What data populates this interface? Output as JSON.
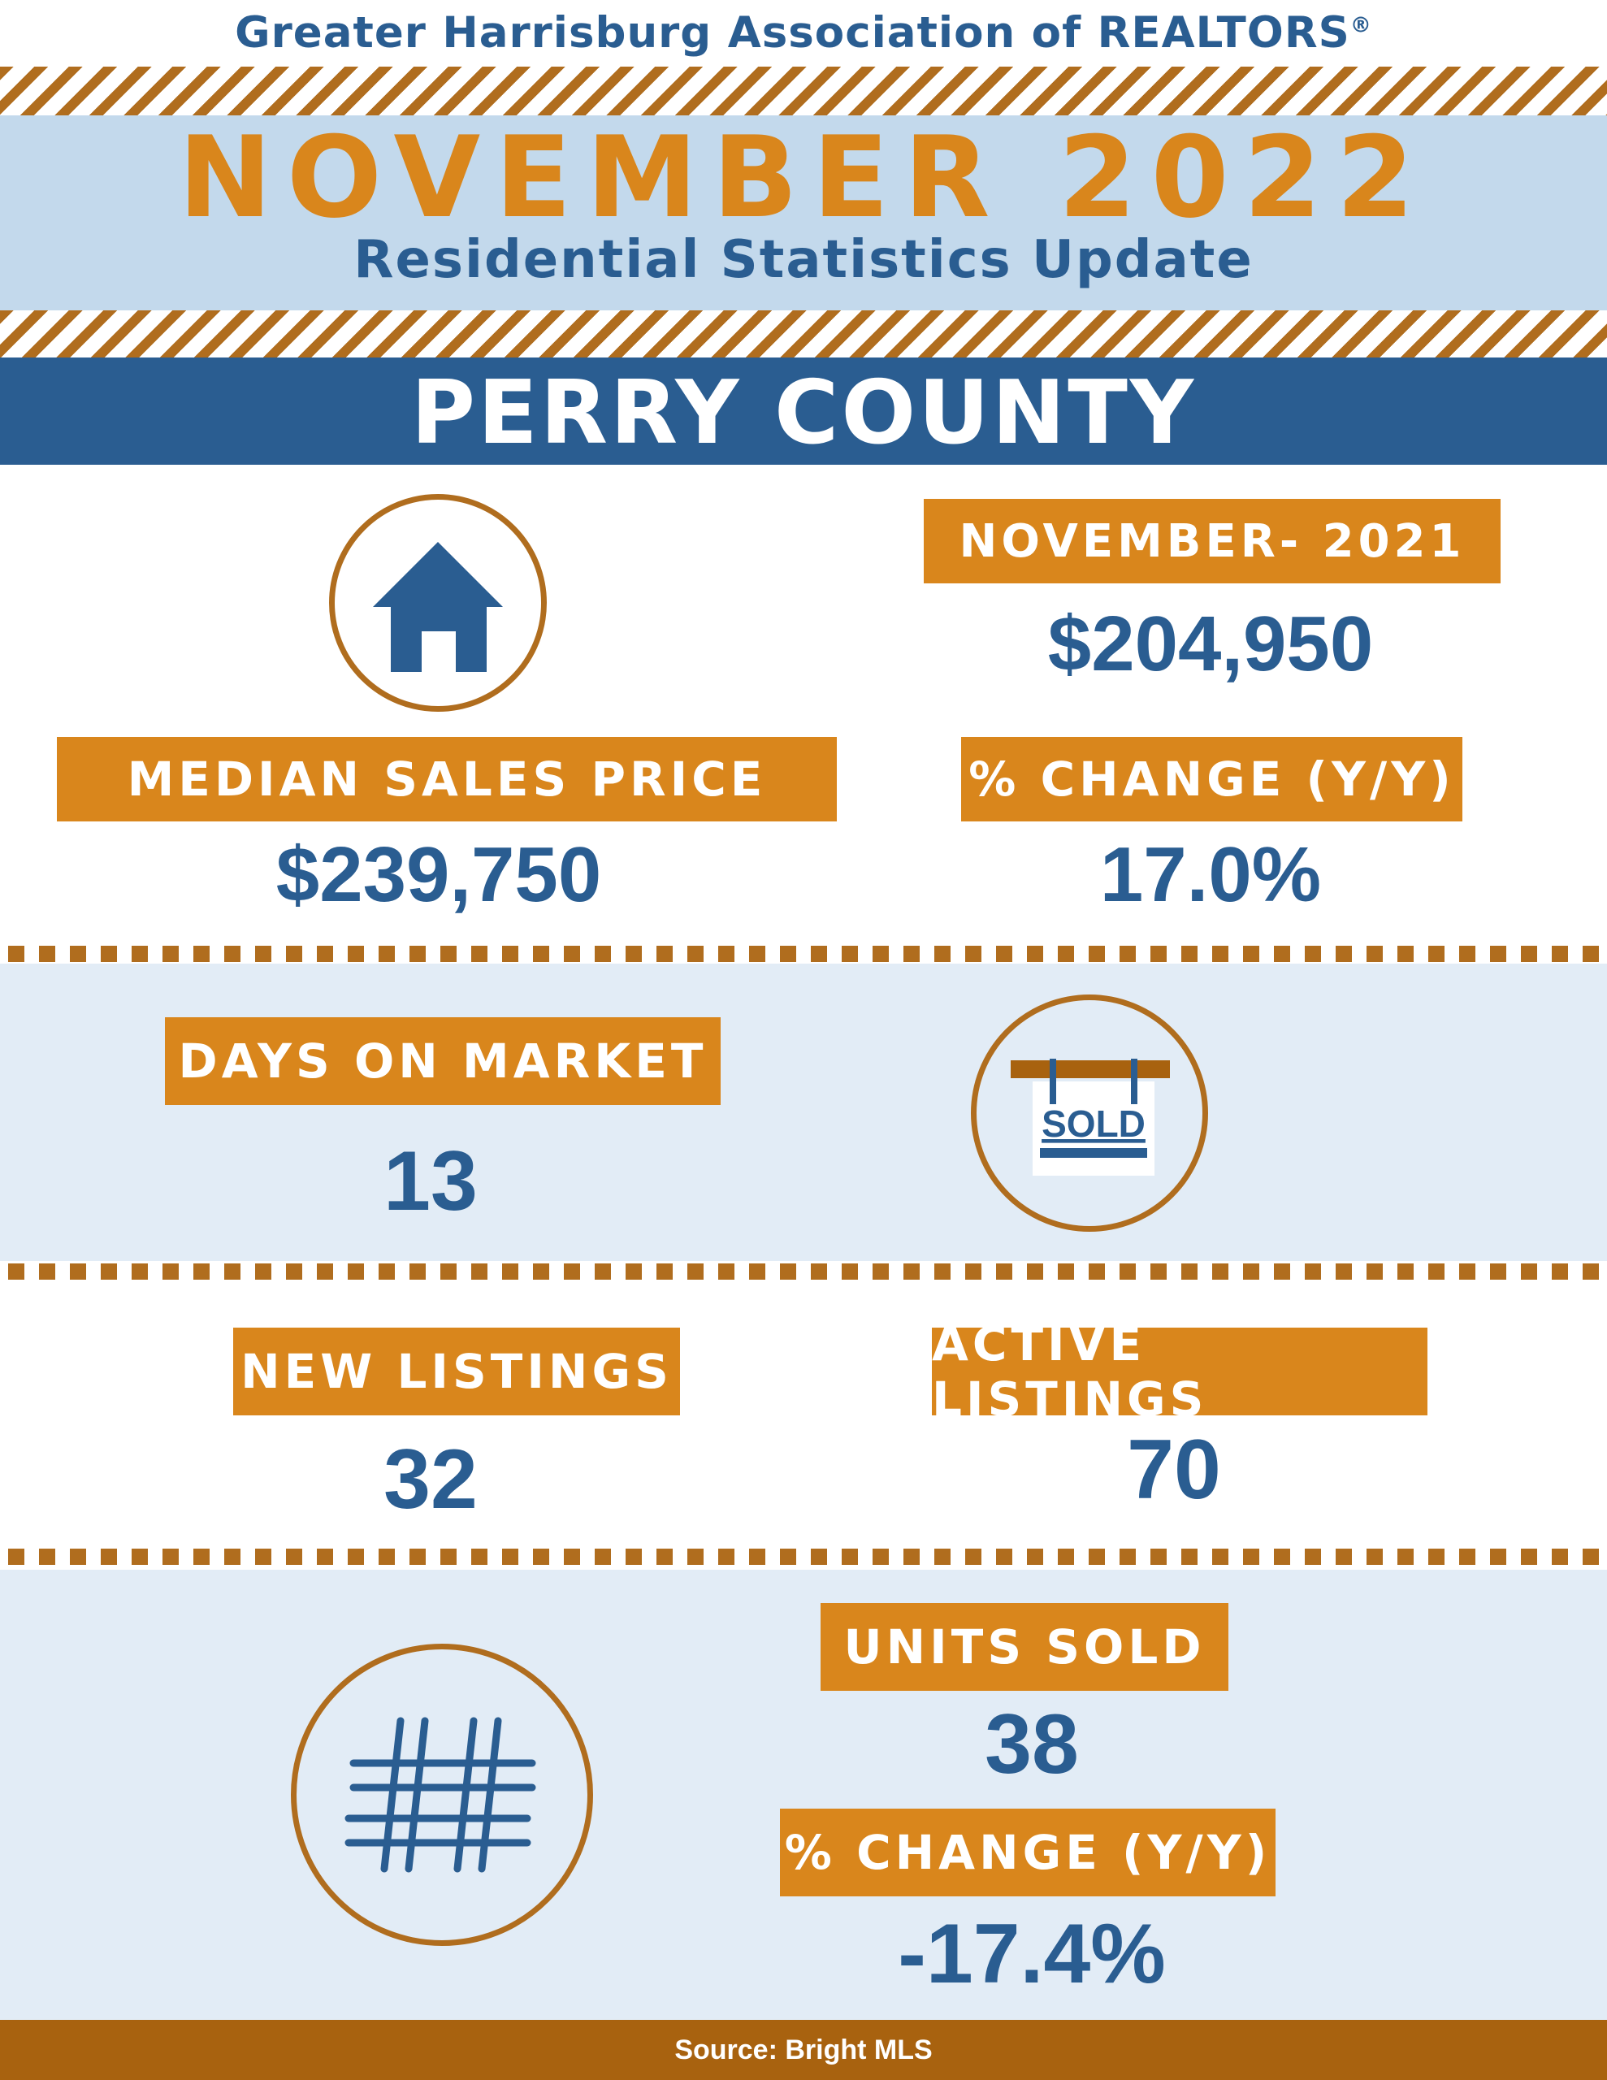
{
  "header": {
    "organization": "Greater Harrisburg Association of REALTORS",
    "registered_mark": "®",
    "month": "NOVEMBER 2022",
    "subtitle": "Residential Statistics Update",
    "county": "PERRY COUNTY"
  },
  "median_price": {
    "prior_label": "NOVEMBER- 2021",
    "prior_value": "$204,950",
    "label": "MEDIAN SALES PRICE",
    "value": "$239,750",
    "change_label": "% CHANGE (Y/Y)",
    "change_value": "17.0%"
  },
  "days_on_market": {
    "label": "DAYS ON MARKET",
    "value": "13",
    "sign_text": "SOLD"
  },
  "listings": {
    "new_label": "NEW LISTINGS",
    "new_value": "32",
    "active_label": "ACTIVE LISTINGS",
    "active_value": "70"
  },
  "units_sold": {
    "label": "UNITS SOLD",
    "value": "38",
    "change_label": "% CHANGE (Y/Y)",
    "change_value": "-17.4%"
  },
  "footer": {
    "source": "Source: Bright MLS"
  },
  "icons": [
    "house-icon",
    "sold-sign-icon",
    "hashtag-icon"
  ],
  "colors": {
    "blue": "#2a5d91",
    "orange": "#d9861c",
    "brown": "#b06d1e",
    "light_blue": "#c3d9ec",
    "pale_blue": "#e2ecf6"
  }
}
